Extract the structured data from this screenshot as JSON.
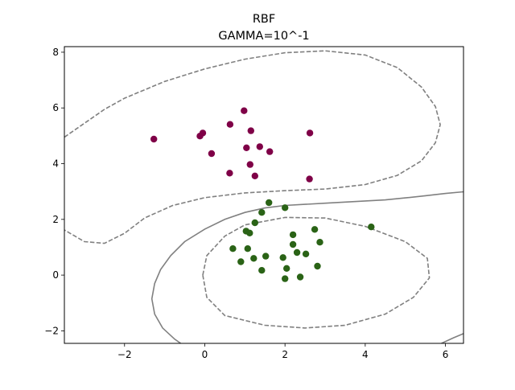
{
  "chart_data": {
    "type": "scatter",
    "title": "RBF",
    "subtitle": "GAMMA=10^-1",
    "xlabel": "",
    "ylabel": "",
    "xlim": [
      -3.5,
      6.45
    ],
    "ylim": [
      -2.45,
      8.2
    ],
    "xticks": [
      -2,
      0,
      2,
      4,
      6
    ],
    "yticks": [
      -2,
      0,
      2,
      4,
      6,
      8
    ],
    "xtick_labels": [
      "−2",
      "0",
      "2",
      "4",
      "6"
    ],
    "ytick_labels": [
      "−2",
      "0",
      "2",
      "4",
      "6",
      "8"
    ],
    "grid": false,
    "legend": "none",
    "series": [
      {
        "color": "#7f0047",
        "points": [
          [
            -1.27,
            4.88
          ],
          [
            -0.05,
            5.1
          ],
          [
            -0.12,
            4.99
          ],
          [
            0.17,
            4.36
          ],
          [
            0.63,
            5.41
          ],
          [
            0.62,
            3.66
          ],
          [
            0.98,
            5.9
          ],
          [
            1.04,
            4.57
          ],
          [
            1.15,
            5.18
          ],
          [
            1.13,
            3.97
          ],
          [
            1.25,
            3.56
          ],
          [
            1.37,
            4.61
          ],
          [
            1.62,
            4.43
          ],
          [
            2.62,
            5.1
          ],
          [
            2.61,
            3.45
          ]
        ]
      },
      {
        "color": "#2a6316",
        "points": [
          [
            1.6,
            2.6
          ],
          [
            1.42,
            2.25
          ],
          [
            1.25,
            1.88
          ],
          [
            1.03,
            1.58
          ],
          [
            1.12,
            1.51
          ],
          [
            2.0,
            2.42
          ],
          [
            0.7,
            0.95
          ],
          [
            1.07,
            0.95
          ],
          [
            0.9,
            0.48
          ],
          [
            1.22,
            0.6
          ],
          [
            1.52,
            0.68
          ],
          [
            1.42,
            0.17
          ],
          [
            1.95,
            0.63
          ],
          [
            2.04,
            0.24
          ],
          [
            2.0,
            -0.13
          ],
          [
            2.38,
            -0.07
          ],
          [
            2.2,
            1.45
          ],
          [
            2.2,
            1.1
          ],
          [
            2.3,
            0.81
          ],
          [
            2.52,
            0.76
          ],
          [
            2.74,
            1.64
          ],
          [
            2.87,
            1.18
          ],
          [
            2.81,
            0.32
          ],
          [
            4.15,
            1.73
          ]
        ]
      }
    ],
    "contours": [
      {
        "style": "solid",
        "color": "#808080",
        "paths": [
          [
            [
              6.45,
              2.99
            ],
            [
              6.0,
              2.93
            ],
            [
              5.5,
              2.85
            ],
            [
              5.0,
              2.77
            ],
            [
              4.5,
              2.7
            ],
            [
              4.0,
              2.66
            ],
            [
              3.5,
              2.62
            ],
            [
              3.0,
              2.58
            ],
            [
              2.5,
              2.54
            ],
            [
              2.0,
              2.5
            ],
            [
              1.5,
              2.41
            ],
            [
              1.0,
              2.25
            ],
            [
              0.5,
              2.0
            ],
            [
              0.0,
              1.65
            ],
            [
              -0.5,
              1.2
            ],
            [
              -0.85,
              0.7
            ],
            [
              -1.1,
              0.2
            ],
            [
              -1.25,
              -0.3
            ],
            [
              -1.32,
              -0.85
            ],
            [
              -1.25,
              -1.4
            ],
            [
              -1.05,
              -1.9
            ],
            [
              -0.75,
              -2.3
            ],
            [
              -0.6,
              -2.45
            ]
          ],
          [
            [
              5.9,
              -2.45
            ],
            [
              6.2,
              -2.25
            ],
            [
              6.45,
              -2.1
            ]
          ]
        ]
      },
      {
        "style": "dashed",
        "color": "#808080",
        "paths": [
          [
            [
              -3.5,
              4.95
            ],
            [
              -3.0,
              5.45
            ],
            [
              -2.5,
              5.95
            ],
            [
              -2.0,
              6.35
            ],
            [
              -1.0,
              6.95
            ],
            [
              0.0,
              7.4
            ],
            [
              1.0,
              7.75
            ],
            [
              2.0,
              7.98
            ],
            [
              3.0,
              8.05
            ],
            [
              4.0,
              7.9
            ],
            [
              4.8,
              7.45
            ],
            [
              5.4,
              6.75
            ],
            [
              5.75,
              6.05
            ],
            [
              5.87,
              5.4
            ],
            [
              5.75,
              4.75
            ],
            [
              5.4,
              4.1
            ],
            [
              4.8,
              3.58
            ],
            [
              4.0,
              3.25
            ],
            [
              3.0,
              3.09
            ],
            [
              2.0,
              3.03
            ],
            [
              1.0,
              2.95
            ],
            [
              0.0,
              2.78
            ],
            [
              -0.8,
              2.5
            ],
            [
              -1.5,
              2.05
            ],
            [
              -2.0,
              1.5
            ],
            [
              -2.5,
              1.14
            ],
            [
              -3.0,
              1.2
            ],
            [
              -3.5,
              1.62
            ]
          ],
          [
            [
              -0.05,
              0.0
            ],
            [
              0.05,
              0.7
            ],
            [
              0.5,
              1.4
            ],
            [
              1.0,
              1.8
            ],
            [
              2.0,
              2.07
            ],
            [
              3.0,
              2.05
            ],
            [
              4.0,
              1.75
            ],
            [
              5.0,
              1.2
            ],
            [
              5.55,
              0.6
            ],
            [
              5.6,
              -0.1
            ],
            [
              5.2,
              -0.8
            ],
            [
              4.5,
              -1.4
            ],
            [
              3.5,
              -1.8
            ],
            [
              2.5,
              -1.9
            ],
            [
              1.5,
              -1.8
            ],
            [
              0.5,
              -1.45
            ],
            [
              0.05,
              -0.8
            ],
            [
              -0.05,
              0.0
            ]
          ]
        ]
      }
    ]
  }
}
